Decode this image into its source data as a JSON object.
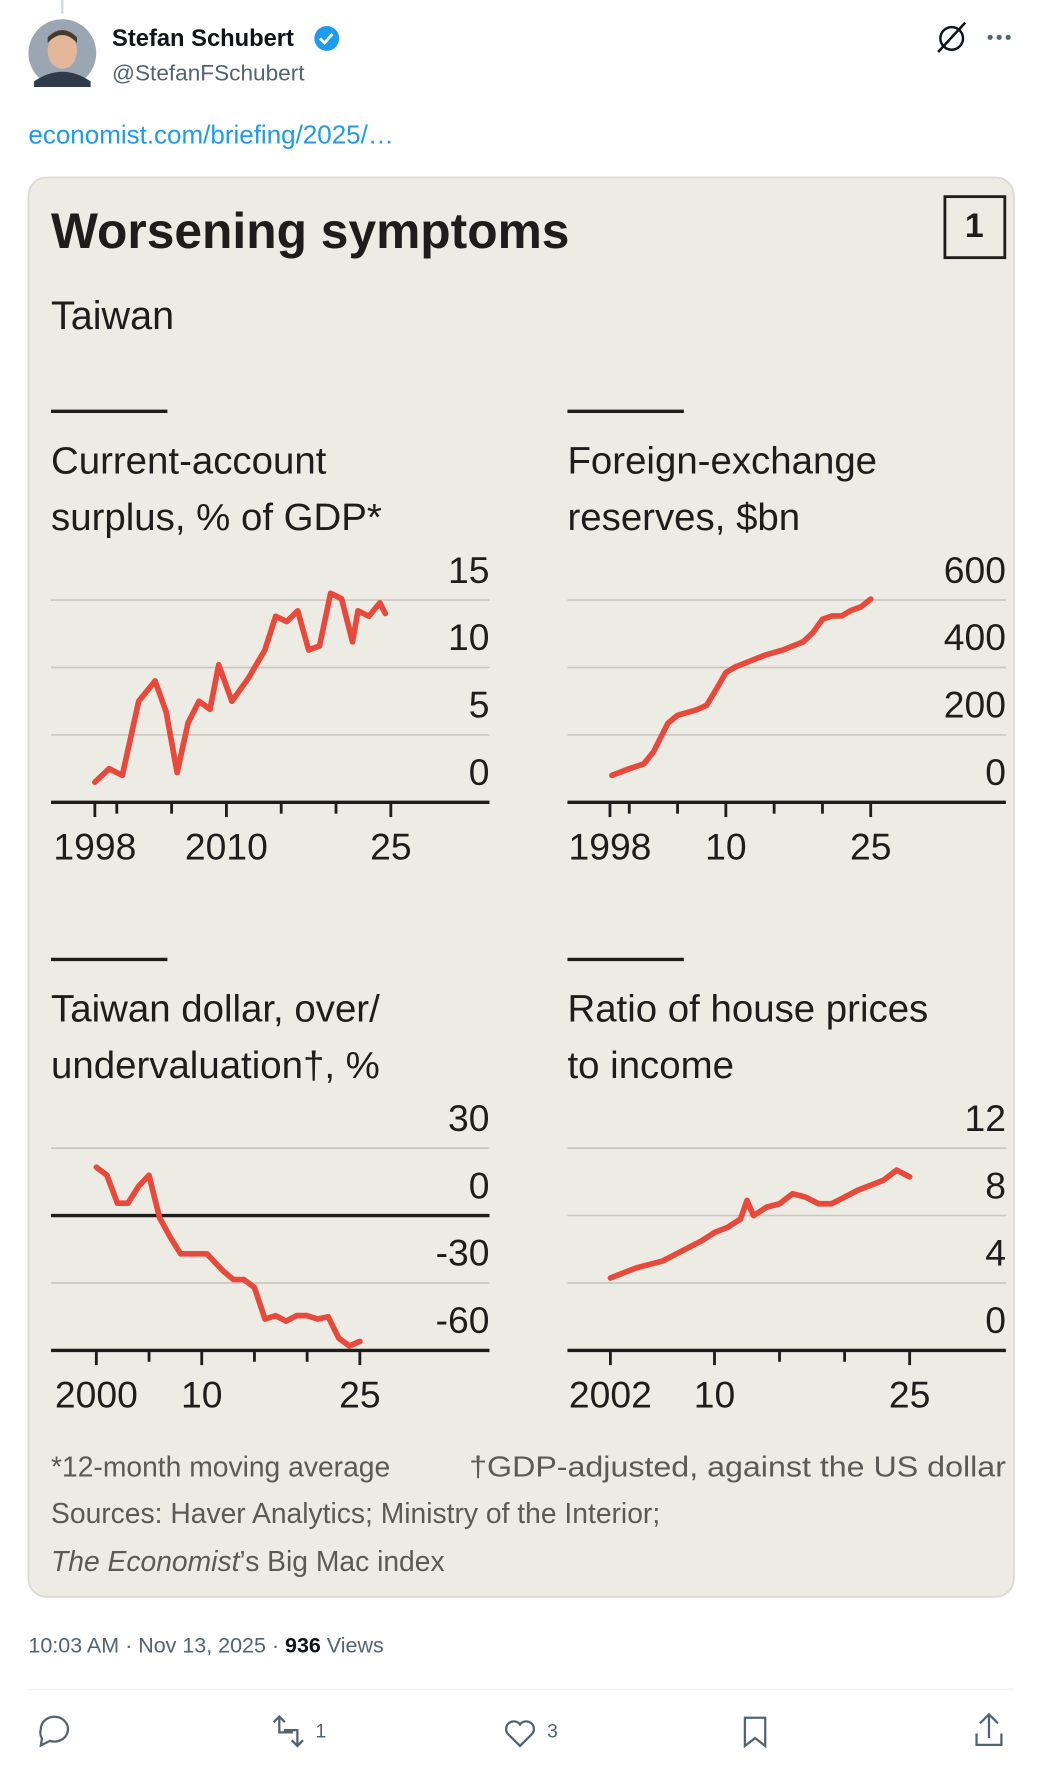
{
  "tweet": {
    "author": {
      "name": "Stefan Schubert",
      "handle": "@StefanFSchubert"
    },
    "link": "economist.com/briefing/2025/…",
    "timestamp": "10:03 AM · Nov 13, 2025 ·",
    "views": 936,
    "views_label": "Views",
    "retweets": 1,
    "likes": 3
  },
  "figure": {
    "title": "Worsening symptoms",
    "subtitle": "Taiwan",
    "number": 1,
    "footnotes": [
      "*12-month moving average",
      "†GDP-adjusted, against the US dollar"
    ],
    "sources": "Sources: Haver Analytics; Ministry of the Interior;",
    "sources_italic": "The Economist",
    "sources_end": "’s Big Mac index"
  },
  "chart_data": [
    {
      "type": "line",
      "title": [
        "Current-account",
        "surplus, % of GDP*"
      ],
      "color": "#e8493a",
      "x": [
        1998.0,
        1999.3,
        2000.5,
        2002.0,
        2003.5,
        2004.5,
        2005.5,
        2006.5,
        2007.5,
        2008.5,
        2009.3,
        2010.5,
        2012.0,
        2013.5,
        2014.5,
        2015.5,
        2016.5,
        2017.5,
        2018.5,
        2019.5,
        2020.5,
        2021.5,
        2022.0,
        2023.0,
        2024.0,
        2024.5
      ],
      "values": [
        1.5,
        2.5,
        2.0,
        7.5,
        9.0,
        6.7,
        2.2,
        5.9,
        7.5,
        6.9,
        10.2,
        7.5,
        9.2,
        11.3,
        13.8,
        13.4,
        14.2,
        11.3,
        11.6,
        15.5,
        15.1,
        11.9,
        14.2,
        13.8,
        14.8,
        14.0
      ],
      "xlim": [
        1994,
        2034
      ],
      "xticks": [
        {
          "value": 1998,
          "label": "1998"
        },
        2010,
        {
          "value": 2025,
          "label": "25"
        }
      ],
      "xminor": [
        2000,
        2005,
        2015,
        2020
      ],
      "ylim": [
        0,
        15
      ],
      "yticks": [
        0,
        5,
        10,
        15
      ],
      "grid": true
    },
    {
      "type": "line",
      "title": [
        "Foreign-exchange",
        "reserves, $bn"
      ],
      "color": "#e8493a",
      "x": [
        1998.2,
        2000,
        2001.5,
        2002.5,
        2004,
        2005,
        2007,
        2008,
        2009,
        2010,
        2011,
        2012.5,
        2014,
        2016,
        2018,
        2019,
        2020,
        2021,
        2022,
        2023,
        2024,
        2025
      ],
      "values": [
        80,
        100,
        114,
        150,
        235,
        258,
        275,
        288,
        335,
        385,
        402,
        419,
        436,
        453,
        476,
        503,
        543,
        553,
        553,
        570,
        580,
        603
      ],
      "xlim": [
        1993.6,
        2039
      ],
      "xticks": [
        1998,
        {
          "value": 2010,
          "label": "10"
        },
        {
          "value": 2025,
          "label": "25"
        }
      ],
      "xminor": [
        2000,
        2005,
        2015,
        2020
      ],
      "ylim": [
        0,
        600
      ],
      "yticks": [
        0,
        200,
        400,
        600
      ],
      "grid": true
    },
    {
      "type": "line",
      "title": [
        "Taiwan dollar, over/",
        "undervaluation†, %"
      ],
      "color": "#e8493a",
      "x": [
        2000,
        2001,
        2002,
        2003,
        2004,
        2005,
        2006,
        2007,
        2008,
        2010.5,
        2012,
        2013,
        2014,
        2015,
        2016,
        2017,
        2018,
        2019,
        2020,
        2021,
        2022,
        2023,
        2024,
        2025
      ],
      "values": [
        21.5,
        18,
        5.5,
        5.5,
        13,
        18,
        -1,
        -9.5,
        -17,
        -17,
        -24.5,
        -28.5,
        -28.5,
        -32,
        -46,
        -44.5,
        -47,
        -44.5,
        -44.5,
        -46,
        -45,
        -54.5,
        -58,
        -56
      ],
      "xlim": [
        1995.7,
        2037.3
      ],
      "xticks": [
        2000,
        {
          "value": 2010,
          "label": "10"
        },
        {
          "value": 2025,
          "label": "25"
        }
      ],
      "xminor": [
        2005,
        2015,
        2020
      ],
      "ylim": [
        -60,
        30
      ],
      "yticks": [
        -60,
        -30,
        0,
        30
      ],
      "grid": true
    },
    {
      "type": "line",
      "title": [
        "Ratio of house prices",
        "to income"
      ],
      "color": "#e8493a",
      "x": [
        2002,
        2003,
        2004,
        2005,
        2006,
        2007,
        2008,
        2009,
        2010,
        2011,
        2012,
        2012.5,
        2013,
        2014,
        2015,
        2016,
        2017,
        2018,
        2019,
        2020,
        2021,
        2022,
        2023,
        2024,
        2025
      ],
      "values": [
        4.3,
        4.6,
        4.9,
        5.1,
        5.3,
        5.7,
        6.1,
        6.5,
        7.0,
        7.3,
        7.8,
        8.9,
        8.0,
        8.5,
        8.7,
        9.3,
        9.1,
        8.7,
        8.7,
        9.1,
        9.5,
        9.8,
        10.1,
        10.7,
        10.3
      ],
      "xlim": [
        1998.7,
        2032.4
      ],
      "xticks": [
        2002,
        {
          "value": 2010,
          "label": "10"
        },
        {
          "value": 2025,
          "label": "25"
        }
      ],
      "xminor": [
        2015,
        2020
      ],
      "ylim": [
        0,
        12
      ],
      "yticks": [
        0,
        4,
        8,
        12
      ],
      "grid": true
    }
  ]
}
